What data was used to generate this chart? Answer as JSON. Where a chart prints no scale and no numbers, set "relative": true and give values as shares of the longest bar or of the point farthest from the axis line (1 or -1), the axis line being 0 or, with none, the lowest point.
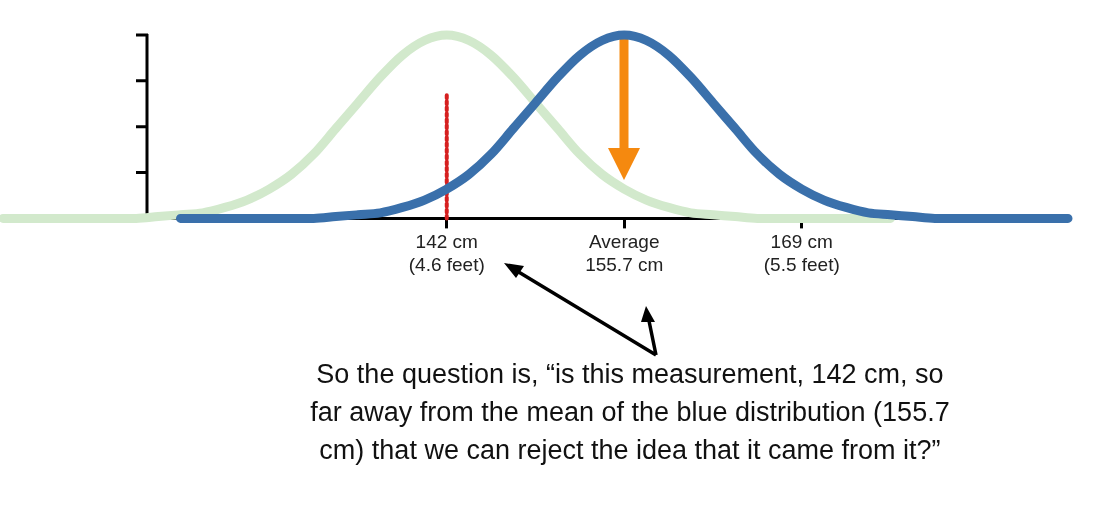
{
  "chart_data": {
    "type": "line",
    "relative": true,
    "categories": [
      null,
      null,
      null,
      null,
      null,
      null,
      null,
      null,
      null,
      null,
      null,
      null,
      null,
      null,
      null,
      null,
      null,
      null,
      null,
      null,
      "142 cm\n(4.6 feet)",
      null,
      null,
      null,
      null,
      null,
      null,
      null,
      "Average\n155.7 cm",
      null,
      null,
      null,
      null,
      null,
      null,
      null,
      "169 cm\n(5.5 feet)",
      null,
      null,
      null,
      null,
      null,
      null,
      null,
      null,
      null,
      null,
      null,
      null
    ],
    "tick_labels": "x",
    "grid": false,
    "legend": false,
    "marker": "none",
    "line_style": "solid",
    "series": [
      {
        "color": "#3a70ab",
        "values": [
          null,
          null,
          null,
          null,
          null,
          null,
          null,
          null,
          0,
          0,
          0,
          0,
          0,
          0,
          0,
          0.01,
          0.02,
          0.03,
          0.06,
          0.1,
          0.16,
          0.24,
          0.35,
          0.49,
          0.63,
          0.77,
          0.89,
          0.97,
          1,
          0.97,
          0.89,
          0.77,
          0.63,
          0.49,
          0.35,
          0.24,
          0.16,
          0.1,
          0.06,
          0.03,
          0.02,
          0.01,
          0,
          0,
          0,
          0,
          0,
          0,
          0
        ]
      },
      {
        "color": "#d2e9cc",
        "values": [
          0,
          0,
          0,
          0,
          0,
          0,
          0,
          0.01,
          0.02,
          0.03,
          0.06,
          0.1,
          0.16,
          0.24,
          0.35,
          0.49,
          0.63,
          0.77,
          0.89,
          0.97,
          1,
          0.97,
          0.89,
          0.77,
          0.63,
          0.49,
          0.35,
          0.24,
          0.16,
          0.1,
          0.06,
          0.03,
          0.02,
          0.01,
          0,
          0,
          0,
          0,
          0,
          0,
          0,
          null,
          null,
          null,
          null,
          null,
          null,
          null,
          null
        ]
      },
      {
        "color": "#d62020",
        "line_style": "dotted",
        "x": [
          "142 cm\n(4.6 feet)",
          "142 cm\n(4.6 feet)"
        ],
        "values": [
          0,
          0.68
        ]
      }
    ],
    "annotations": [
      "So the question is, “is this measurement, 142 cm, so far away from the mean of the blue distribution (155.7 cm) that we can reject the idea that it came from it?”"
    ]
  }
}
